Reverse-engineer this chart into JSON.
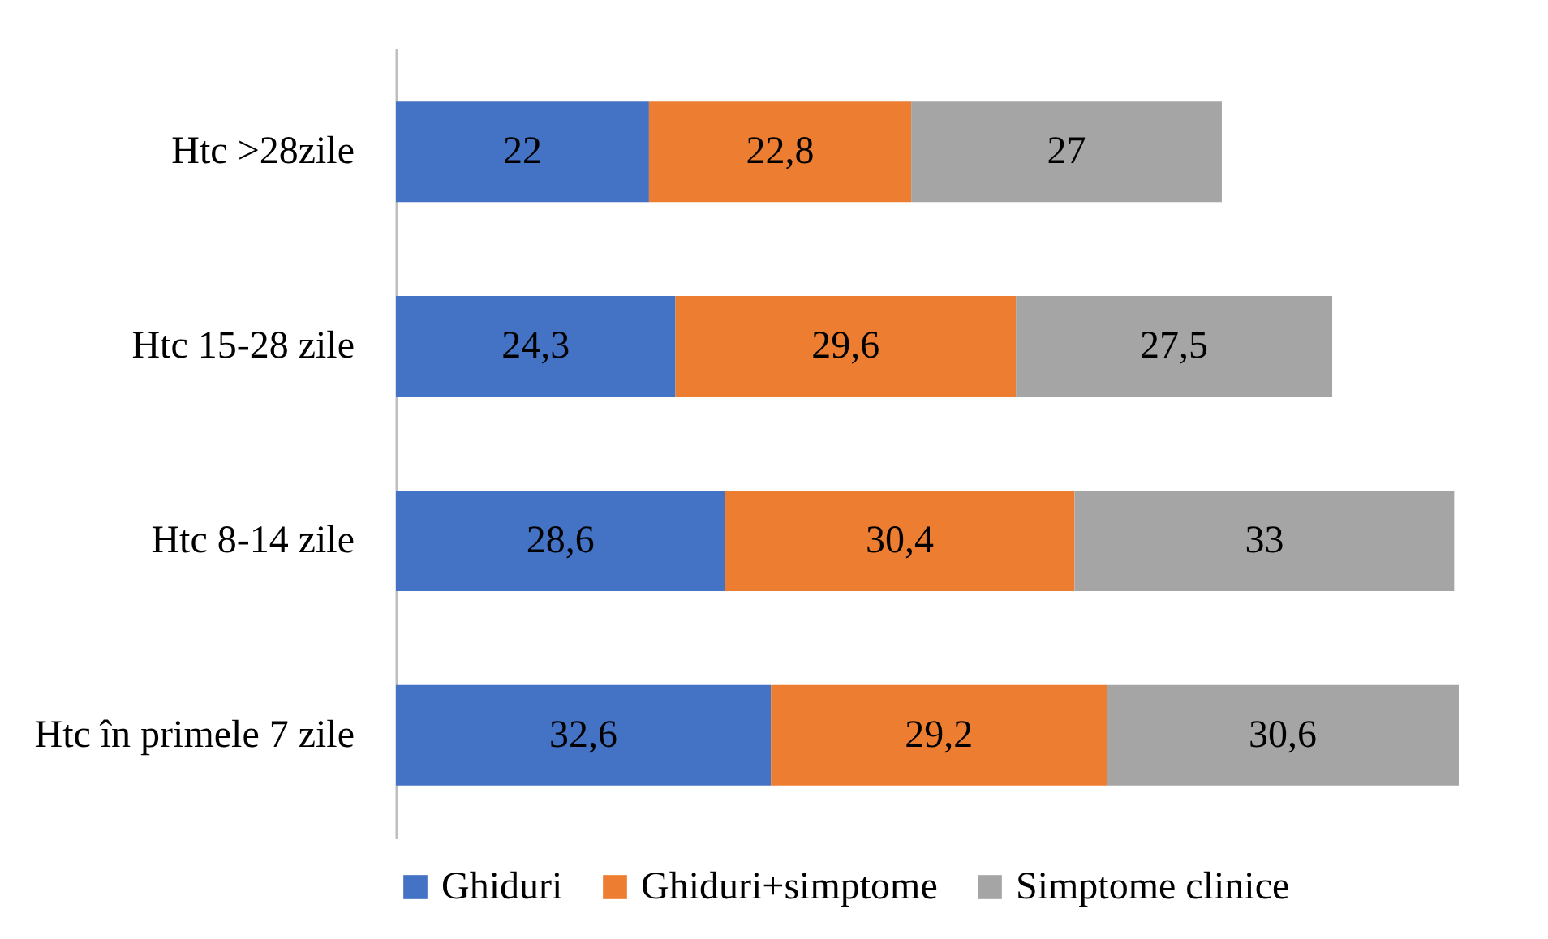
{
  "chart_data": {
    "type": "bar",
    "orientation": "horizontal",
    "stacked": true,
    "categories": [
      "Htc >28zile",
      "Htc 15-28 zile",
      "Htc 8-14 zile",
      "Htc în primele 7 zile"
    ],
    "series": [
      {
        "name": "Ghiduri",
        "color": "#4472c4",
        "values": [
          22,
          24.3,
          28.6,
          32.6
        ],
        "value_labels": [
          "22",
          "24,3",
          "28,6",
          "32,6"
        ]
      },
      {
        "name": "Ghiduri+simptome",
        "color": "#ed7d31",
        "values": [
          22.8,
          29.6,
          30.4,
          29.2
        ],
        "value_labels": [
          "22,8",
          "29,6",
          "30,4",
          "29,2"
        ]
      },
      {
        "name": "Simptome clinice",
        "color": "#a5a5a5",
        "values": [
          27,
          27.5,
          33,
          30.6
        ],
        "value_labels": [
          "27",
          "27,5",
          "33",
          "30,6"
        ]
      }
    ],
    "legend": "bottom",
    "grid": false,
    "tick_labels": "y"
  }
}
